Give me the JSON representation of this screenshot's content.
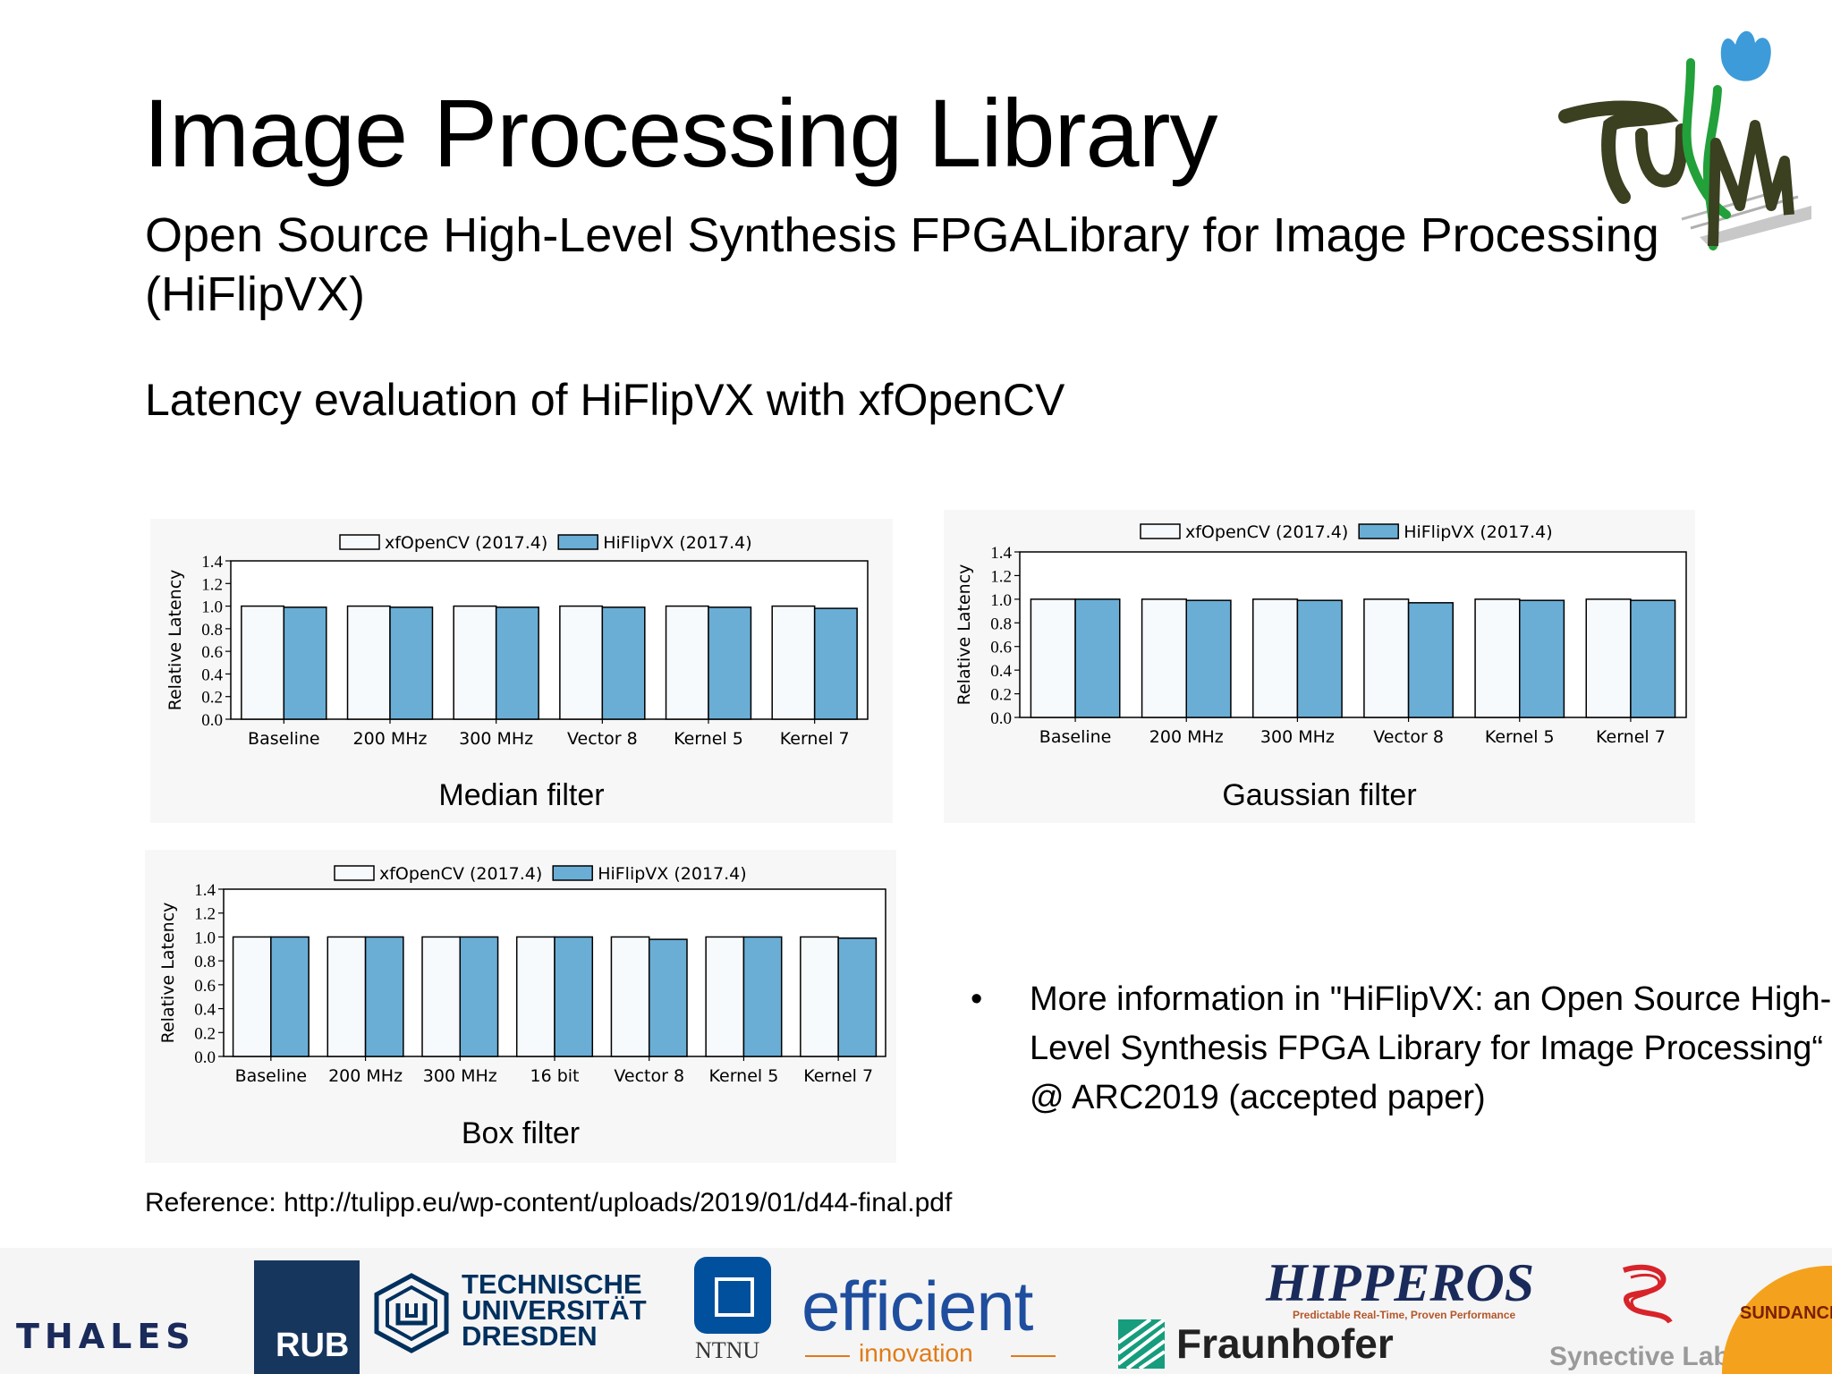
{
  "slide": {
    "title": "Image Processing Library",
    "subtitle": "Open Source High-Level Synthesis FPGALibrary for Image Processing (HiFlipVX)",
    "section": "Latency evaluation of HiFlipVX with xfOpenCV",
    "bullet": "More information in \"HiFlipVX: an Open Source High-Level Synthesis FPGA Library for Image Processing“ @ ARC2019 (accepted paper)",
    "reference": "Reference: http://tulipp.eu/wp-content/uploads/2019/01/d44-final.pdf",
    "bullet_symbol": "•"
  },
  "logos": {
    "thales": "THALES",
    "rub": "RUB",
    "tud": "TECHNISCHE\nUNIVERSITÄT\nDRESDEN",
    "ntnu": "NTNU",
    "efficient": "efficient",
    "efficient_sub": "innovation",
    "hipperos": "HIPPEROS",
    "hipperos_sub": "Predictable Real-Time, Proven Performance",
    "fraunhofer": "Fraunhofer",
    "synective": "Synective Labs",
    "sundance": "SUNDANCE",
    "tulipp": "TULIPP"
  },
  "colors": {
    "xfopencv_fill": "#f7fafd",
    "hiflipvx_fill": "#6aaed6",
    "rub_blue": "#17365d",
    "tud_blue": "#00305e",
    "efficient_blue": "#1f4e9e",
    "efficient_orange": "#e07b17",
    "fraunhofer_green": "#179c7d",
    "sundance_orange": "#f4a21d",
    "tulipp_green": "#22a03a",
    "tulipp_blue": "#3d9bd9",
    "tulipp_dark": "#3a4020"
  },
  "chart_data": [
    {
      "type": "bar",
      "title": "Median filter",
      "ylabel": "Relative Latency",
      "xlabel": "",
      "ylim": [
        0,
        1.4
      ],
      "yticks": [
        "0.0",
        "0.2",
        "0.4",
        "0.6",
        "0.8",
        "1.0",
        "1.2",
        "1.4"
      ],
      "categories": [
        "Baseline",
        "200 MHz",
        "300 MHz",
        "Vector 8",
        "Kernel 5",
        "Kernel 7"
      ],
      "legend_position": "top",
      "series": [
        {
          "name": "xfOpenCV (2017.4)",
          "values": [
            1.0,
            1.0,
            1.0,
            1.0,
            1.0,
            1.0
          ]
        },
        {
          "name": "HiFlipVX (2017.4)",
          "values": [
            0.99,
            0.99,
            0.99,
            0.99,
            0.99,
            0.98
          ]
        }
      ]
    },
    {
      "type": "bar",
      "title": "Gaussian filter",
      "ylabel": "Relative Latency",
      "xlabel": "",
      "ylim": [
        0,
        1.4
      ],
      "yticks": [
        "0.0",
        "0.2",
        "0.4",
        "0.6",
        "0.8",
        "1.0",
        "1.2",
        "1.4"
      ],
      "categories": [
        "Baseline",
        "200 MHz",
        "300 MHz",
        "Vector 8",
        "Kernel 5",
        "Kernel 7"
      ],
      "legend_position": "top",
      "series": [
        {
          "name": "xfOpenCV (2017.4)",
          "values": [
            1.0,
            1.0,
            1.0,
            1.0,
            1.0,
            1.0
          ]
        },
        {
          "name": "HiFlipVX (2017.4)",
          "values": [
            1.0,
            0.99,
            0.99,
            0.97,
            0.99,
            0.99
          ]
        }
      ]
    },
    {
      "type": "bar",
      "title": "Box filter",
      "ylabel": "Relative Latency",
      "xlabel": "",
      "ylim": [
        0,
        1.4
      ],
      "yticks": [
        "0.0",
        "0.2",
        "0.4",
        "0.6",
        "0.8",
        "1.0",
        "1.2",
        "1.4"
      ],
      "categories": [
        "Baseline",
        "200 MHz",
        "300 MHz",
        "16 bit",
        "Vector 8",
        "Kernel 5",
        "Kernel 7"
      ],
      "legend_position": "top",
      "series": [
        {
          "name": "xfOpenCV (2017.4)",
          "values": [
            1.0,
            1.0,
            1.0,
            1.0,
            1.0,
            1.0,
            1.0
          ]
        },
        {
          "name": "HiFlipVX (2017.4)",
          "values": [
            1.0,
            1.0,
            1.0,
            1.0,
            0.98,
            1.0,
            0.99
          ]
        }
      ]
    }
  ]
}
